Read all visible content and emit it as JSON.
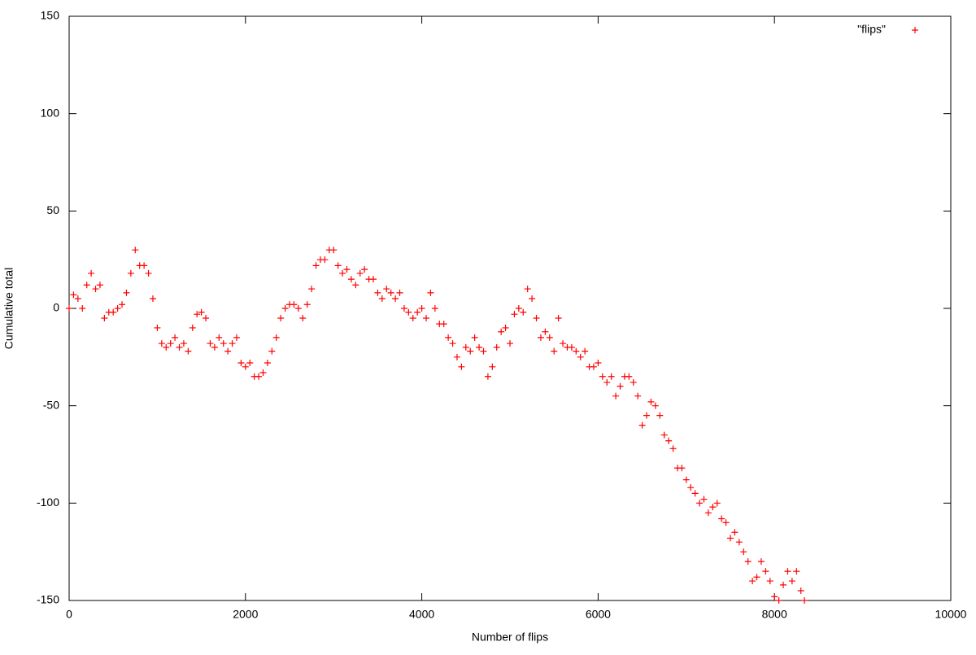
{
  "chart_data": {
    "type": "scatter",
    "xlabel": "Number of flips",
    "ylabel": "Cumulative total",
    "xlim": [
      0,
      10000
    ],
    "ylim": [
      -150,
      150
    ],
    "xticks": [
      0,
      2000,
      4000,
      6000,
      8000,
      10000
    ],
    "yticks": [
      -150,
      -100,
      -50,
      0,
      50,
      100,
      150
    ],
    "legend": "top-right",
    "grid": false,
    "series": [
      {
        "name": "\"flips\"",
        "color": "#ff0000",
        "x": [
          0,
          50,
          100,
          150,
          200,
          250,
          300,
          350,
          400,
          450,
          500,
          550,
          600,
          650,
          700,
          750,
          800,
          850,
          900,
          950,
          1000,
          1050,
          1100,
          1150,
          1200,
          1250,
          1300,
          1350,
          1400,
          1450,
          1500,
          1550,
          1600,
          1650,
          1700,
          1750,
          1800,
          1850,
          1900,
          1950,
          2000,
          2050,
          2100,
          2150,
          2200,
          2250,
          2300,
          2350,
          2400,
          2450,
          2500,
          2550,
          2600,
          2650,
          2700,
          2750,
          2800,
          2850,
          2900,
          2950,
          3000,
          3050,
          3100,
          3150,
          3200,
          3250,
          3300,
          3350,
          3400,
          3450,
          3500,
          3550,
          3600,
          3650,
          3700,
          3750,
          3800,
          3850,
          3900,
          3950,
          4000,
          4050,
          4100,
          4150,
          4200,
          4250,
          4300,
          4350,
          4400,
          4450,
          4500,
          4550,
          4600,
          4650,
          4700,
          4750,
          4800,
          4850,
          4900,
          4950,
          5000,
          5050,
          5100,
          5150,
          5200,
          5250,
          5300,
          5350,
          5400,
          5450,
          5500,
          5550,
          5600,
          5650,
          5700,
          5750,
          5800,
          5850,
          5900,
          5950,
          6000,
          6050,
          6100,
          6150,
          6200,
          6250,
          6300,
          6350,
          6400,
          6450,
          6500,
          6550,
          6600,
          6650,
          6700,
          6750,
          6800,
          6850,
          6900,
          6950,
          7000,
          7050,
          7100,
          7150,
          7200,
          7250,
          7300,
          7350,
          7400,
          7450,
          7500,
          7550,
          7600,
          7650,
          7700,
          7750,
          7800,
          7850,
          7900,
          7950,
          8000,
          8050,
          8100,
          8150,
          8200,
          8250,
          8300,
          8340
        ],
        "values": [
          0,
          7,
          5,
          0,
          12,
          18,
          10,
          12,
          -5,
          -2,
          -2,
          0,
          2,
          8,
          18,
          30,
          22,
          22,
          18,
          5,
          -10,
          -18,
          -20,
          -18,
          -15,
          -20,
          -18,
          -22,
          -10,
          -3,
          -2,
          -5,
          -18,
          -20,
          -15,
          -18,
          -22,
          -18,
          -15,
          -28,
          -30,
          -28,
          -35,
          -35,
          -33,
          -28,
          -22,
          -15,
          -5,
          0,
          2,
          2,
          0,
          -5,
          2,
          10,
          22,
          25,
          25,
          30,
          30,
          22,
          18,
          20,
          15,
          12,
          18,
          20,
          15,
          15,
          8,
          5,
          10,
          8,
          5,
          8,
          0,
          -2,
          -5,
          -2,
          0,
          -5,
          8,
          0,
          -8,
          -8,
          -15,
          -18,
          -25,
          -30,
          -20,
          -22,
          -15,
          -20,
          -22,
          -35,
          -30,
          -20,
          -12,
          -10,
          -18,
          -3,
          0,
          -2,
          10,
          5,
          -5,
          -15,
          -12,
          -15,
          -22,
          -5,
          -18,
          -20,
          -20,
          -22,
          -25,
          -22,
          -30,
          -30,
          -28,
          -35,
          -38,
          -35,
          -45,
          -40,
          -35,
          -35,
          -38,
          -45,
          -60,
          -55,
          -48,
          -50,
          -55,
          -65,
          -68,
          -72,
          -82,
          -82,
          -88,
          -92,
          -95,
          -100,
          -98,
          -105,
          -102,
          -100,
          -108,
          -110,
          -118,
          -115,
          -120,
          -125,
          -130,
          -140,
          -138,
          -130,
          -135,
          -140,
          -148,
          -150,
          -142,
          -135,
          -140,
          -135,
          -145,
          -150
        ]
      }
    ]
  }
}
